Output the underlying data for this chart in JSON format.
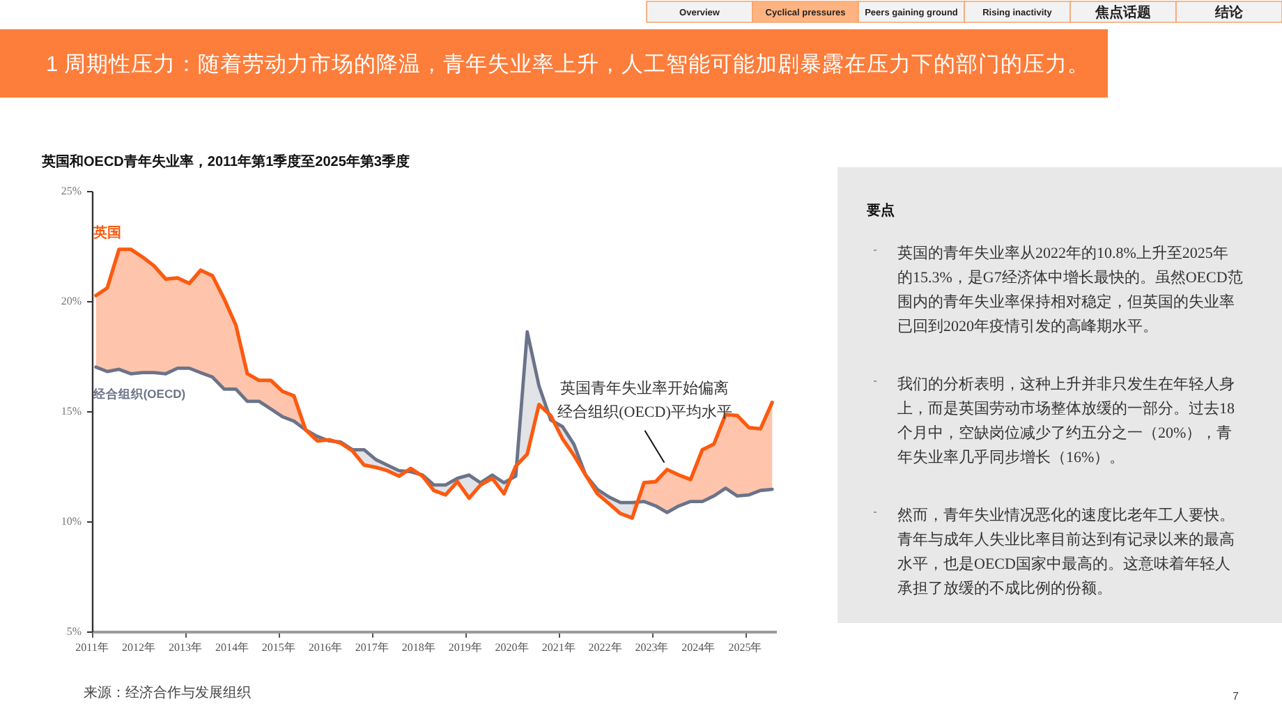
{
  "chart_data": {
    "type": "line",
    "title": "英国和OECD青年失业率，2011年第1季度至2025年第3季度",
    "x": [
      "2011-02",
      "2011-05",
      "2011-08",
      "2011-11",
      "2012-02",
      "2012-05",
      "2012-08",
      "2012-11",
      "2013-02",
      "2013-05",
      "2013-08",
      "2013-11",
      "2014-02",
      "2014-05",
      "2014-08",
      "2014-11",
      "2015-02",
      "2015-05",
      "2015-08",
      "2015-11",
      "2016-02",
      "2016-05",
      "2016-08",
      "2016-11",
      "2017-02",
      "2017-05",
      "2017-08",
      "2017-11",
      "2018-02",
      "2018-05",
      "2018-08",
      "2018-11",
      "2019-02",
      "2019-05",
      "2019-08",
      "2019-11",
      "2020-02",
      "2020-05",
      "2020-08",
      "2020-11",
      "2021-02",
      "2021-05",
      "2021-08",
      "2021-11",
      "2022-02",
      "2022-05",
      "2022-08",
      "2022-11",
      "2023-02",
      "2023-05",
      "2023-08",
      "2023-11",
      "2024-02",
      "2024-05",
      "2024-08",
      "2024-11",
      "2025-02",
      "2025-05",
      "2025-08"
    ],
    "series": [
      {
        "name": "英国",
        "color": "#fc5a10",
        "values": [
          20.25,
          20.6,
          22.35,
          22.35,
          22.0,
          21.6,
          21.0,
          21.05,
          20.8,
          21.4,
          21.15,
          20.1,
          18.9,
          16.7,
          16.4,
          16.4,
          15.9,
          15.7,
          14.15,
          13.65,
          13.7,
          13.55,
          13.2,
          12.55,
          12.45,
          12.3,
          12.05,
          12.4,
          12.05,
          11.4,
          11.2,
          11.8,
          11.05,
          11.65,
          11.95,
          11.25,
          12.5,
          13.05,
          15.3,
          14.8,
          13.75,
          13.0,
          12.1,
          11.25,
          10.8,
          10.35,
          10.15,
          11.75,
          11.8,
          12.35,
          12.1,
          11.9,
          13.25,
          13.5,
          14.85,
          14.8,
          14.25,
          14.2,
          15.4
        ],
        "lower": [
          17.0,
          16.8,
          16.9,
          16.7,
          16.75,
          16.75,
          16.7,
          16.95,
          16.95,
          16.75,
          16.55,
          16.0,
          16.0,
          15.45,
          15.45,
          15.1,
          14.75,
          14.55,
          14.15,
          null,
          null,
          null,
          null,
          null,
          null,
          null,
          null,
          null,
          null,
          null,
          null,
          null,
          null,
          null,
          null,
          null,
          null,
          null,
          null,
          null,
          null,
          null,
          null,
          null,
          null,
          null,
          10.85,
          10.9,
          10.7,
          10.4,
          10.7,
          10.9,
          10.9,
          11.15,
          11.5,
          11.15,
          11.2,
          11.4,
          11.45
        ],
        "upper": [
          20.25,
          20.6,
          22.35,
          22.35,
          22.0,
          21.6,
          21.0,
          21.05,
          20.8,
          21.4,
          21.15,
          20.1,
          18.9,
          16.7,
          16.4,
          16.4,
          15.9,
          15.7,
          14.15,
          null,
          null,
          null,
          null,
          null,
          null,
          null,
          null,
          null,
          null,
          null,
          null,
          null,
          null,
          null,
          null,
          null,
          null,
          null,
          null,
          null,
          null,
          null,
          null,
          null,
          null,
          null,
          10.15,
          11.75,
          11.8,
          12.35,
          12.1,
          11.9,
          13.25,
          13.5,
          14.85,
          14.8,
          14.25,
          14.2,
          15.4
        ]
      },
      {
        "name": "经合组织(OECD)",
        "color": "#6b7389",
        "values": [
          17.0,
          16.8,
          16.9,
          16.7,
          16.75,
          16.75,
          16.7,
          16.95,
          16.95,
          16.75,
          16.55,
          16.0,
          16.0,
          15.45,
          15.45,
          15.1,
          14.75,
          14.55,
          14.15,
          13.85,
          13.65,
          13.6,
          13.25,
          13.25,
          12.8,
          12.55,
          12.3,
          12.25,
          12.1,
          11.65,
          11.65,
          11.95,
          12.1,
          11.75,
          12.1,
          11.75,
          12.05,
          18.6,
          16.15,
          14.6,
          14.3,
          13.5,
          12.1,
          11.45,
          11.1,
          10.85,
          10.85,
          10.9,
          10.7,
          10.4,
          10.7,
          10.9,
          10.9,
          11.15,
          11.5,
          11.15,
          11.2,
          11.4,
          11.45
        ],
        "lower": [
          null,
          null,
          null,
          null,
          null,
          null,
          null,
          null,
          null,
          null,
          null,
          null,
          null,
          null,
          null,
          null,
          null,
          null,
          14.15,
          13.65,
          13.7,
          13.55,
          13.2,
          12.55,
          12.45,
          12.3,
          12.05,
          12.4,
          12.05,
          11.4,
          11.2,
          11.8,
          11.05,
          11.65,
          11.95,
          11.25,
          12.5,
          13.05,
          15.3,
          14.8,
          13.75,
          13.0,
          12.1,
          11.25,
          10.8,
          10.35,
          10.15,
          null,
          null,
          null,
          null,
          null,
          null,
          null,
          null,
          null,
          null,
          null,
          null
        ],
        "upper": [
          null,
          null,
          null,
          null,
          null,
          null,
          null,
          null,
          null,
          null,
          null,
          null,
          null,
          null,
          null,
          null,
          null,
          null,
          14.15,
          13.85,
          13.65,
          13.6,
          13.25,
          13.25,
          12.8,
          12.55,
          12.3,
          12.25,
          12.1,
          11.65,
          11.65,
          11.95,
          12.1,
          11.75,
          12.1,
          11.75,
          12.05,
          18.6,
          16.15,
          14.6,
          14.3,
          13.5,
          12.1,
          11.45,
          11.1,
          10.85,
          10.85,
          null,
          null,
          null,
          null,
          null,
          null,
          null,
          null,
          null,
          null,
          null,
          null
        ]
      }
    ],
    "xlim": [
      "2011-01",
      "2025-09"
    ],
    "xticks": [
      {
        "value": "2011",
        "label": "2011年"
      },
      {
        "value": "2012",
        "label": "2012年"
      },
      {
        "value": "2013",
        "label": "2013年"
      },
      {
        "value": "2014",
        "label": "2014年"
      },
      {
        "value": "2015",
        "label": "2015年"
      },
      {
        "value": "2016",
        "label": "2016年"
      },
      {
        "value": "2017",
        "label": "2017年"
      },
      {
        "value": "2018",
        "label": "2018年"
      },
      {
        "value": "2019",
        "label": "2019年"
      },
      {
        "value": "2020",
        "label": "2020年"
      },
      {
        "value": "2021",
        "label": "2021年"
      },
      {
        "value": "2022",
        "label": "2022年"
      },
      {
        "value": "2023",
        "label": "2023年"
      },
      {
        "value": "2024",
        "label": "2024年"
      },
      {
        "value": "2025",
        "label": "2025年"
      }
    ],
    "ylim": [
      5,
      25
    ],
    "yticks": [
      {
        "value": 5,
        "label": "5%"
      },
      {
        "value": 10,
        "label": "10%"
      },
      {
        "value": 15,
        "label": "15%"
      },
      {
        "value": 20,
        "label": "20%"
      },
      {
        "value": 25,
        "label": "25%"
      }
    ],
    "grid": false,
    "marker": "none",
    "line_style": "solid",
    "annotations": [
      "1  周期性压力：随着劳动力市场的降温，青年失业率上升，人工智能可能加剧暴露在压力下的部门的压力。",
      "Overview",
      "Cyclical pressures",
      "Peers gaining ground",
      "Rising inactivity",
      "焦点话题",
      "结论",
      "要点",
      "英国的青年失业率从2022年的10.8%上升至2025年的15.3%，是G7经济体中增长最快的。虽然OECD范围内的青年失业率保持相对稳定，但英国的失业率已回到2020年疫情引发的高峰期水平。",
      "我们的分析表明，这种上升并非只发生在年轻人身上，而是英国劳动市场整体放缓的一部分。过去18个月中，空缺岗位减少了约五分之一（20%），青年失业率几乎同步增长（16%）。",
      "然而，青年失业情况恶化的速度比老年工人要快。青年与成年人失业比率目前达到有记录以来的最高水平，也是OECD国家中最高的。这意味着年轻人承担了放缓的不成比例的份额。",
      "来源：经济合作与发展组织",
      "7",
      {
        "text": "英国青年失业率开始偏离经合组织(OECD)平均水平",
        "x": "2023-05",
        "y": 12.35
      }
    ]
  }
}
